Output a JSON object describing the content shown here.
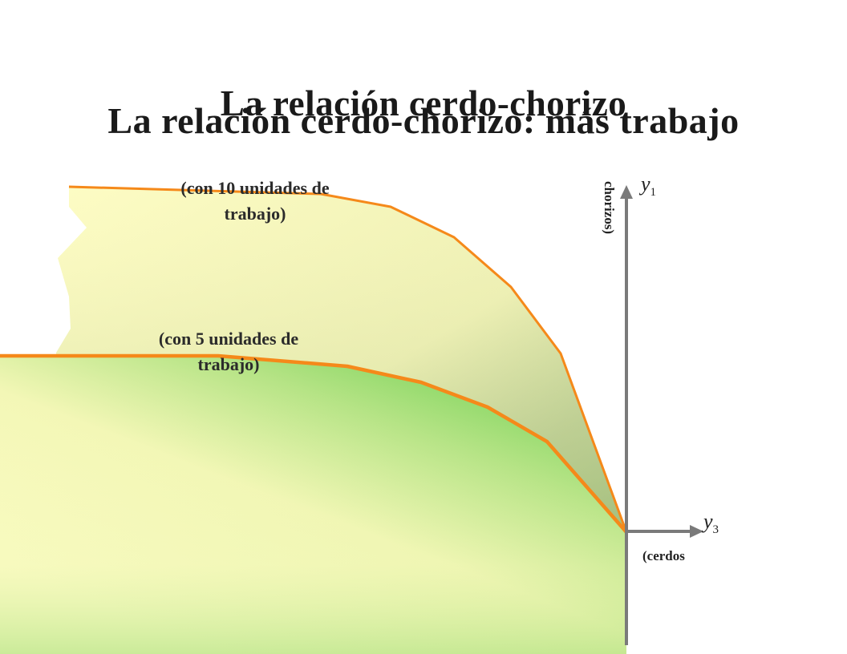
{
  "title_back": "La relación cerdo-chorizo",
  "title_front": "La relación cerdo-chorizo: más trabajo",
  "curve_high_label": "(con 10 unidades de trabajo)",
  "curve_low_label": "(con  5 unidades de trabajo)",
  "y_axis_label": "chorizos)",
  "x_axis_label": "(cerdos",
  "var_y1": "y",
  "var_y1_sub": "1",
  "var_y3": "y",
  "var_y3_sub": "3",
  "colors": {
    "curve": "#f5891a",
    "axis": "#7a7a7a",
    "fill_yellow": "#fdfcc4",
    "fill_green": "#6fcf4a"
  }
}
